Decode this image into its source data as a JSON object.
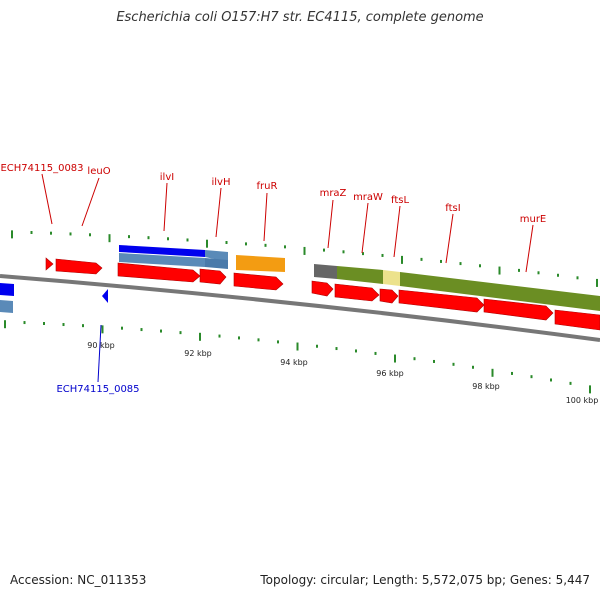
{
  "title": "Escherichia coli O157:H7 str. EC4115, complete genome",
  "footer": {
    "accession": "Accession: NC_011353",
    "topology": "Topology: circular; Length: 5,572,075 bp; Genes: 5,447"
  },
  "colors": {
    "forward_label": "#cc0000",
    "reverse_label": "#0000cc",
    "cds": "#ff0000",
    "tick": "#2a8a2a",
    "backbone": "#777777"
  },
  "gene_labels": [
    {
      "name": "ECH74115_0083",
      "strand": "forward"
    },
    {
      "name": "leuO",
      "strand": "forward"
    },
    {
      "name": "ilvI",
      "strand": "forward"
    },
    {
      "name": "ilvH",
      "strand": "forward"
    },
    {
      "name": "fruR",
      "strand": "forward"
    },
    {
      "name": "mraZ",
      "strand": "forward"
    },
    {
      "name": "mraW",
      "strand": "forward"
    },
    {
      "name": "ftsL",
      "strand": "forward"
    },
    {
      "name": "ftsI",
      "strand": "forward"
    },
    {
      "name": "murE",
      "strand": "forward"
    },
    {
      "name": "ECH74115_0085",
      "strand": "reverse"
    }
  ],
  "scale_labels": [
    "90 kbp",
    "92 kbp",
    "94 kbp",
    "96 kbp",
    "98 kbp",
    "100 kbp"
  ]
}
